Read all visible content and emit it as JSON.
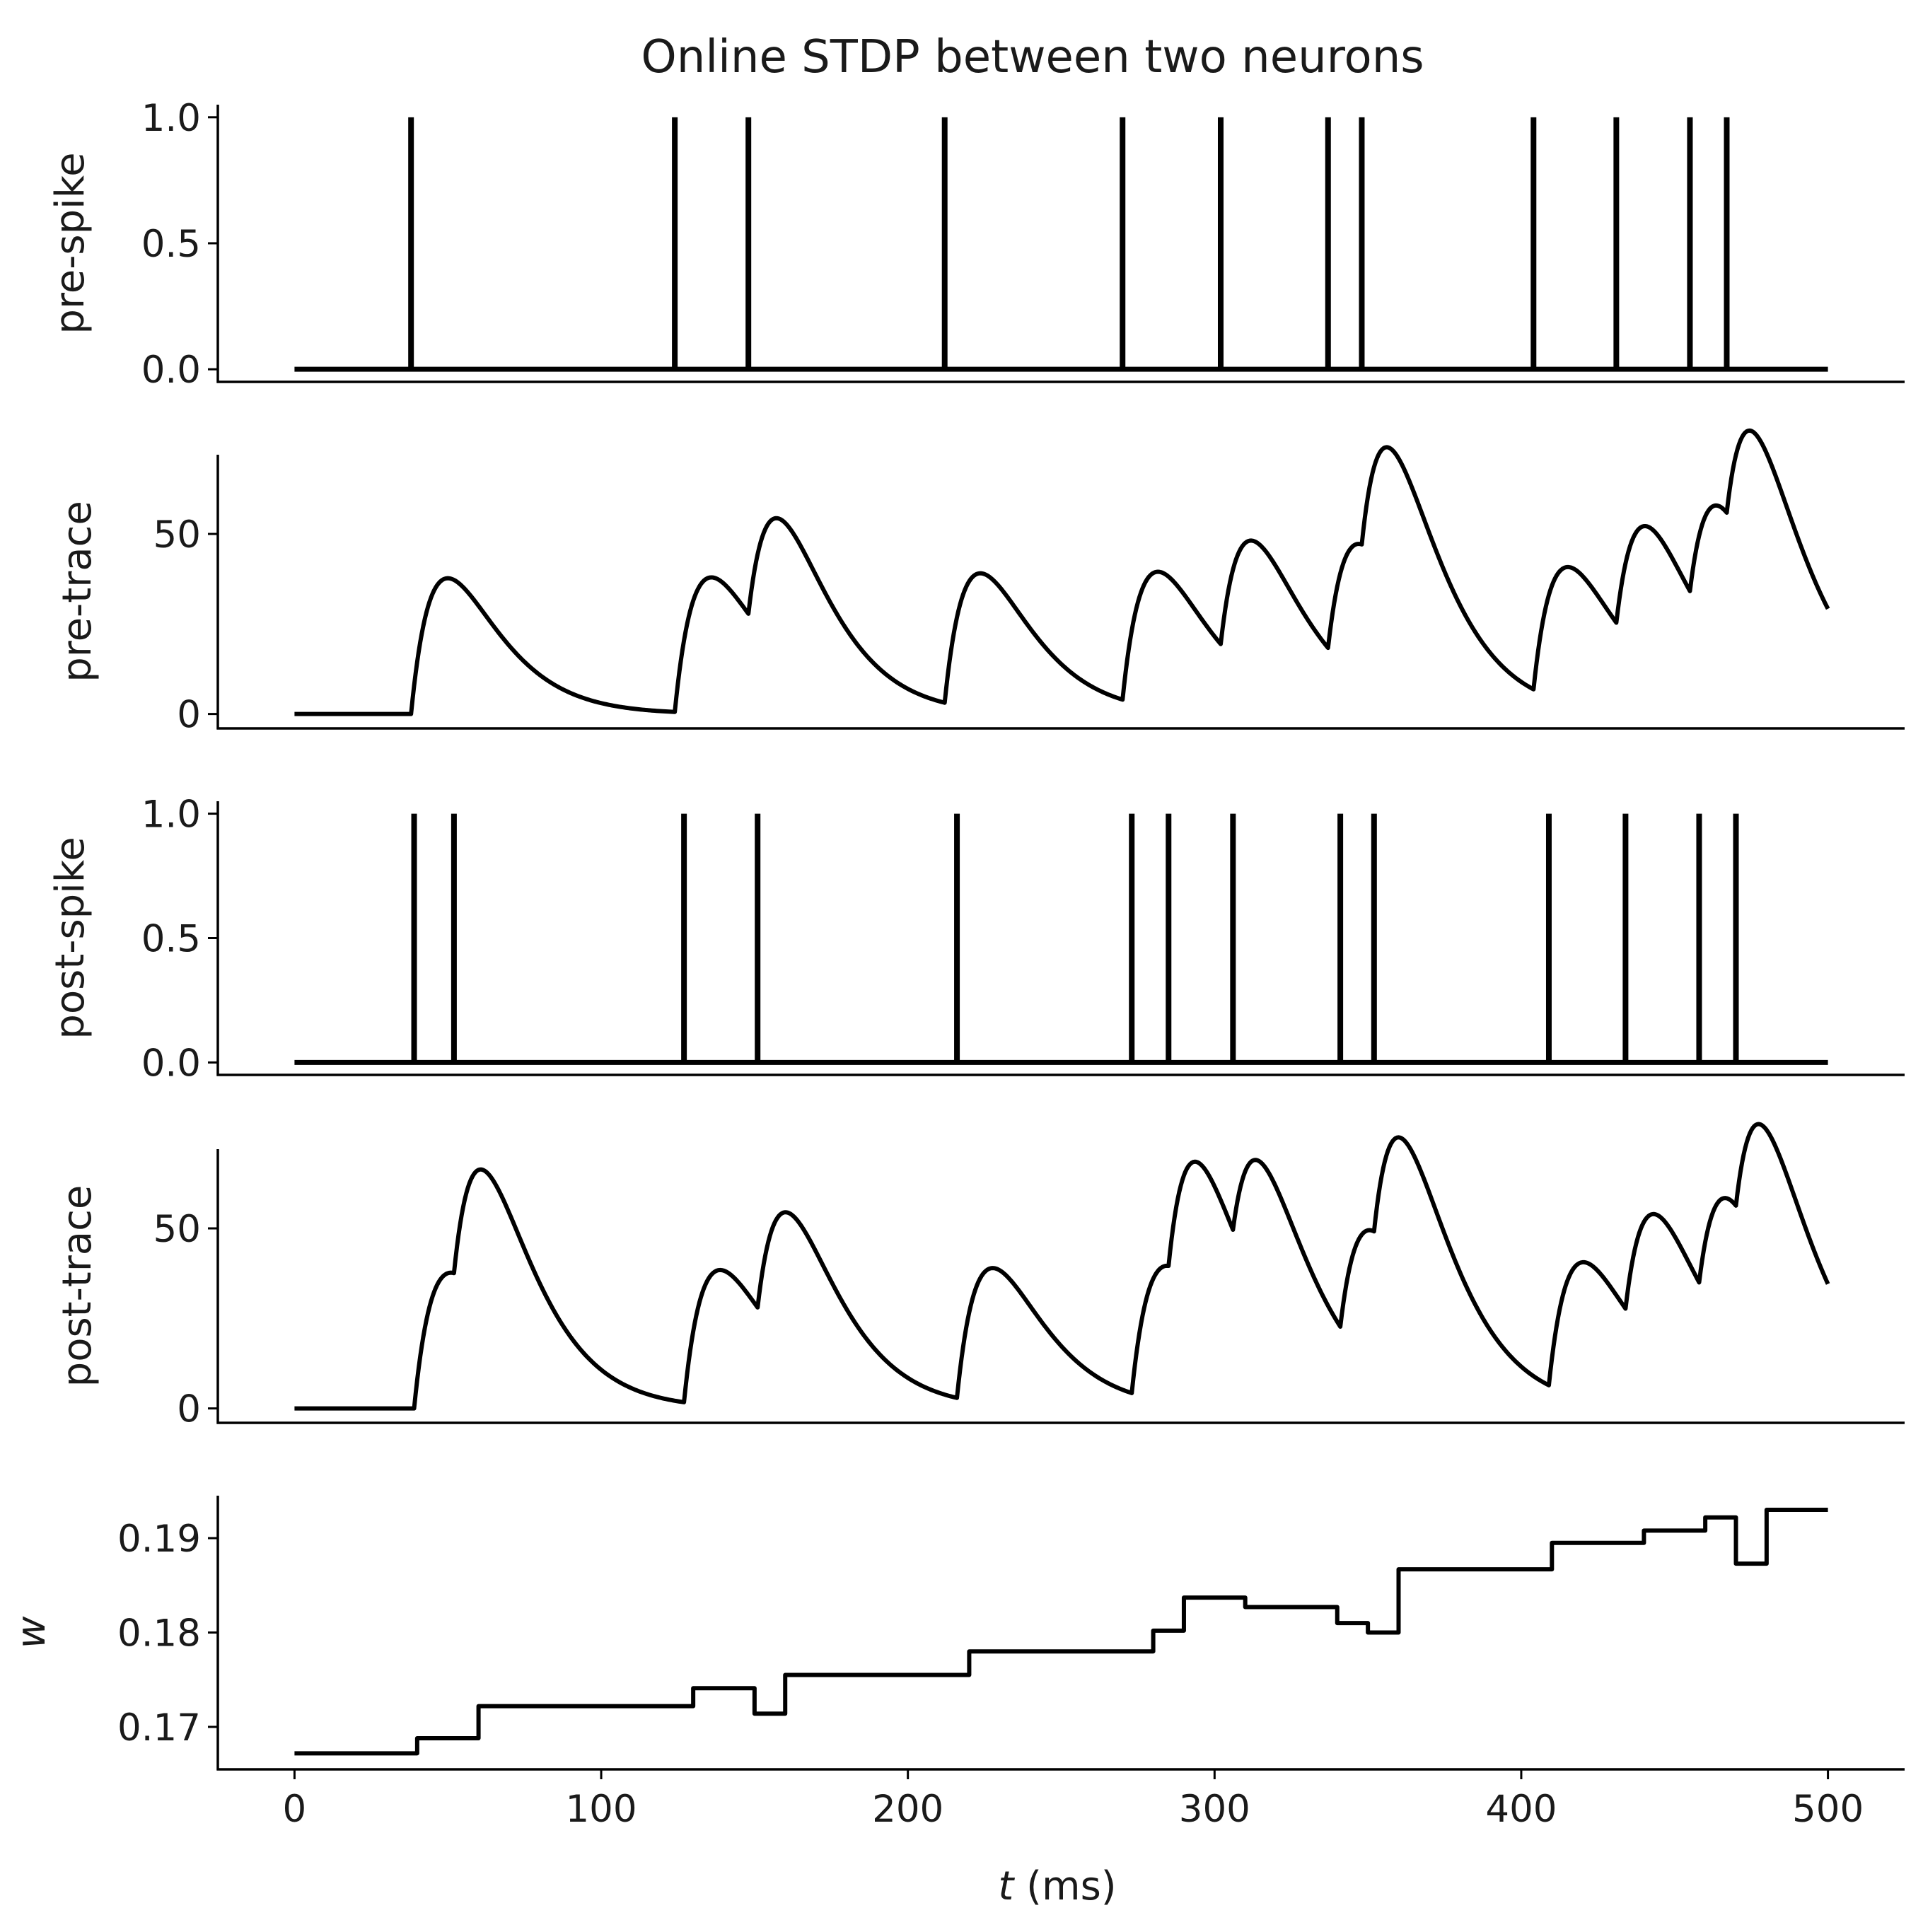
{
  "chart_data": {
    "type": "line",
    "title": "Online STDP between two neurons",
    "xlabel": "t (ms)",
    "xlabel_var": "t",
    "xlabel_unit": "(ms)",
    "xlim": [
      -25,
      525
    ],
    "xticks": [
      0,
      100,
      200,
      300,
      400,
      500
    ],
    "panels": [
      {
        "name": "pre-spike",
        "ylabel": "pre-spike",
        "kind": "spikes",
        "ylim": [
          -0.05,
          1.05
        ],
        "yticks": [
          "0.0",
          "0.5",
          "1.0"
        ],
        "ytick_values": [
          0,
          0.5,
          1.0
        ],
        "spike_times": [
          38,
          124,
          148,
          212,
          270,
          302,
          337,
          348,
          404,
          431,
          455,
          467
        ]
      },
      {
        "name": "pre-trace",
        "ylabel": "pre-trace",
        "kind": "trace",
        "ylim": [
          -4,
          72
        ],
        "yticks": [
          "0",
          "50"
        ],
        "ytick_values": [
          0,
          50
        ],
        "kicks": [
          [
            38,
            37.7
          ],
          [
            124,
            37.7
          ],
          [
            148,
            37.7
          ],
          [
            212,
            37.7
          ],
          [
            270,
            37.7
          ],
          [
            302,
            37.7
          ],
          [
            337,
            37.7
          ],
          [
            348,
            37.7
          ],
          [
            404,
            37.7
          ],
          [
            431,
            37.7
          ],
          [
            455,
            37.7
          ],
          [
            467,
            37.7
          ]
        ],
        "t_end": 500
      },
      {
        "name": "post-spike",
        "ylabel": "post-spike",
        "kind": "spikes",
        "ylim": [
          -0.05,
          1.05
        ],
        "yticks": [
          "0.0",
          "0.5",
          "1.0"
        ],
        "ytick_values": [
          0,
          0.5,
          1.0
        ],
        "spike_times": [
          39,
          52,
          127,
          151,
          216,
          273,
          285,
          306,
          341,
          352,
          409,
          434,
          458,
          470
        ]
      },
      {
        "name": "post-trace",
        "ylabel": "post-trace",
        "kind": "trace",
        "ylim": [
          -4,
          72
        ],
        "yticks": [
          "0",
          "50"
        ],
        "ytick_values": [
          0,
          50
        ],
        "kicks": [
          [
            39,
            37.7
          ],
          [
            52,
            37.7
          ],
          [
            127,
            37.7
          ],
          [
            151,
            37.7
          ],
          [
            216,
            37.7
          ],
          [
            273,
            37.7
          ],
          [
            285,
            37.7
          ],
          [
            306,
            37.7
          ],
          [
            341,
            37.7
          ],
          [
            352,
            37.7
          ],
          [
            409,
            37.7
          ],
          [
            434,
            37.7
          ],
          [
            458,
            37.7
          ],
          [
            470,
            37.7
          ]
        ],
        "t_end": 500
      },
      {
        "name": "w",
        "ylabel": "w",
        "kind": "step",
        "ylim": [
          0.1655,
          0.1945
        ],
        "yticks": [
          "0.17",
          "0.18",
          "0.19"
        ],
        "ytick_values": [
          0.17,
          0.18,
          0.19
        ],
        "steps": [
          [
            0,
            0.1672
          ],
          [
            40,
            0.1688
          ],
          [
            60,
            0.1722
          ],
          [
            130,
            0.1741
          ],
          [
            150,
            0.1714
          ],
          [
            160,
            0.1755
          ],
          [
            220,
            0.178
          ],
          [
            280,
            0.1802
          ],
          [
            290,
            0.1837
          ],
          [
            310,
            0.1827
          ],
          [
            340,
            0.181
          ],
          [
            350,
            0.18
          ],
          [
            360,
            0.1867
          ],
          [
            410,
            0.1895
          ],
          [
            440,
            0.1908
          ],
          [
            460,
            0.1922
          ],
          [
            470,
            0.1873
          ],
          [
            480,
            0.193
          ],
          [
            500,
            0.193
          ]
        ]
      }
    ]
  }
}
